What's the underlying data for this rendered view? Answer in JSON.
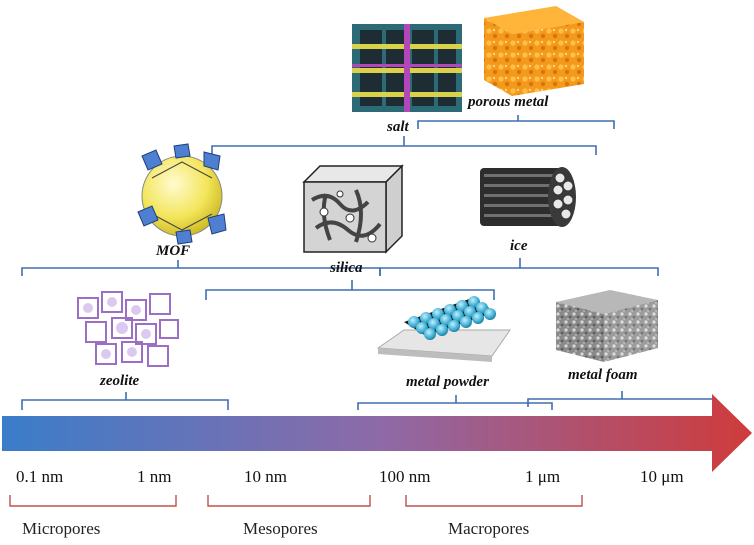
{
  "materials": {
    "salt": "salt",
    "porous_metal": "porous metal",
    "mof": "MOF",
    "silica": "silica",
    "ice": "ice",
    "zeolite": "zeolite",
    "metal_powder": "metal powder",
    "metal_foam": "metal foam"
  },
  "scale_ticks": [
    "0.1 nm",
    "1 nm",
    "10 nm",
    "100 nm",
    "1 μm",
    "10 μm"
  ],
  "categories": [
    "Micropores",
    "Mesopores",
    "Macropores"
  ],
  "colors": {
    "arrow_start": "#3a7dc9",
    "arrow_mid": "#8d6aa8",
    "arrow_end": "#cf3b3b",
    "bracket_blue": "#3f6fb0",
    "bracket_red": "#c0504d"
  },
  "icons": {
    "salt": "salt-crystal-icon",
    "porous_metal": "porous-metal-cube-icon",
    "mof": "mof-framework-icon",
    "silica": "silica-cube-icon",
    "ice": "ice-rods-icon",
    "zeolite": "zeolite-structure-icon",
    "metal_powder": "metal-powder-icon",
    "metal_foam": "metal-foam-icon"
  }
}
